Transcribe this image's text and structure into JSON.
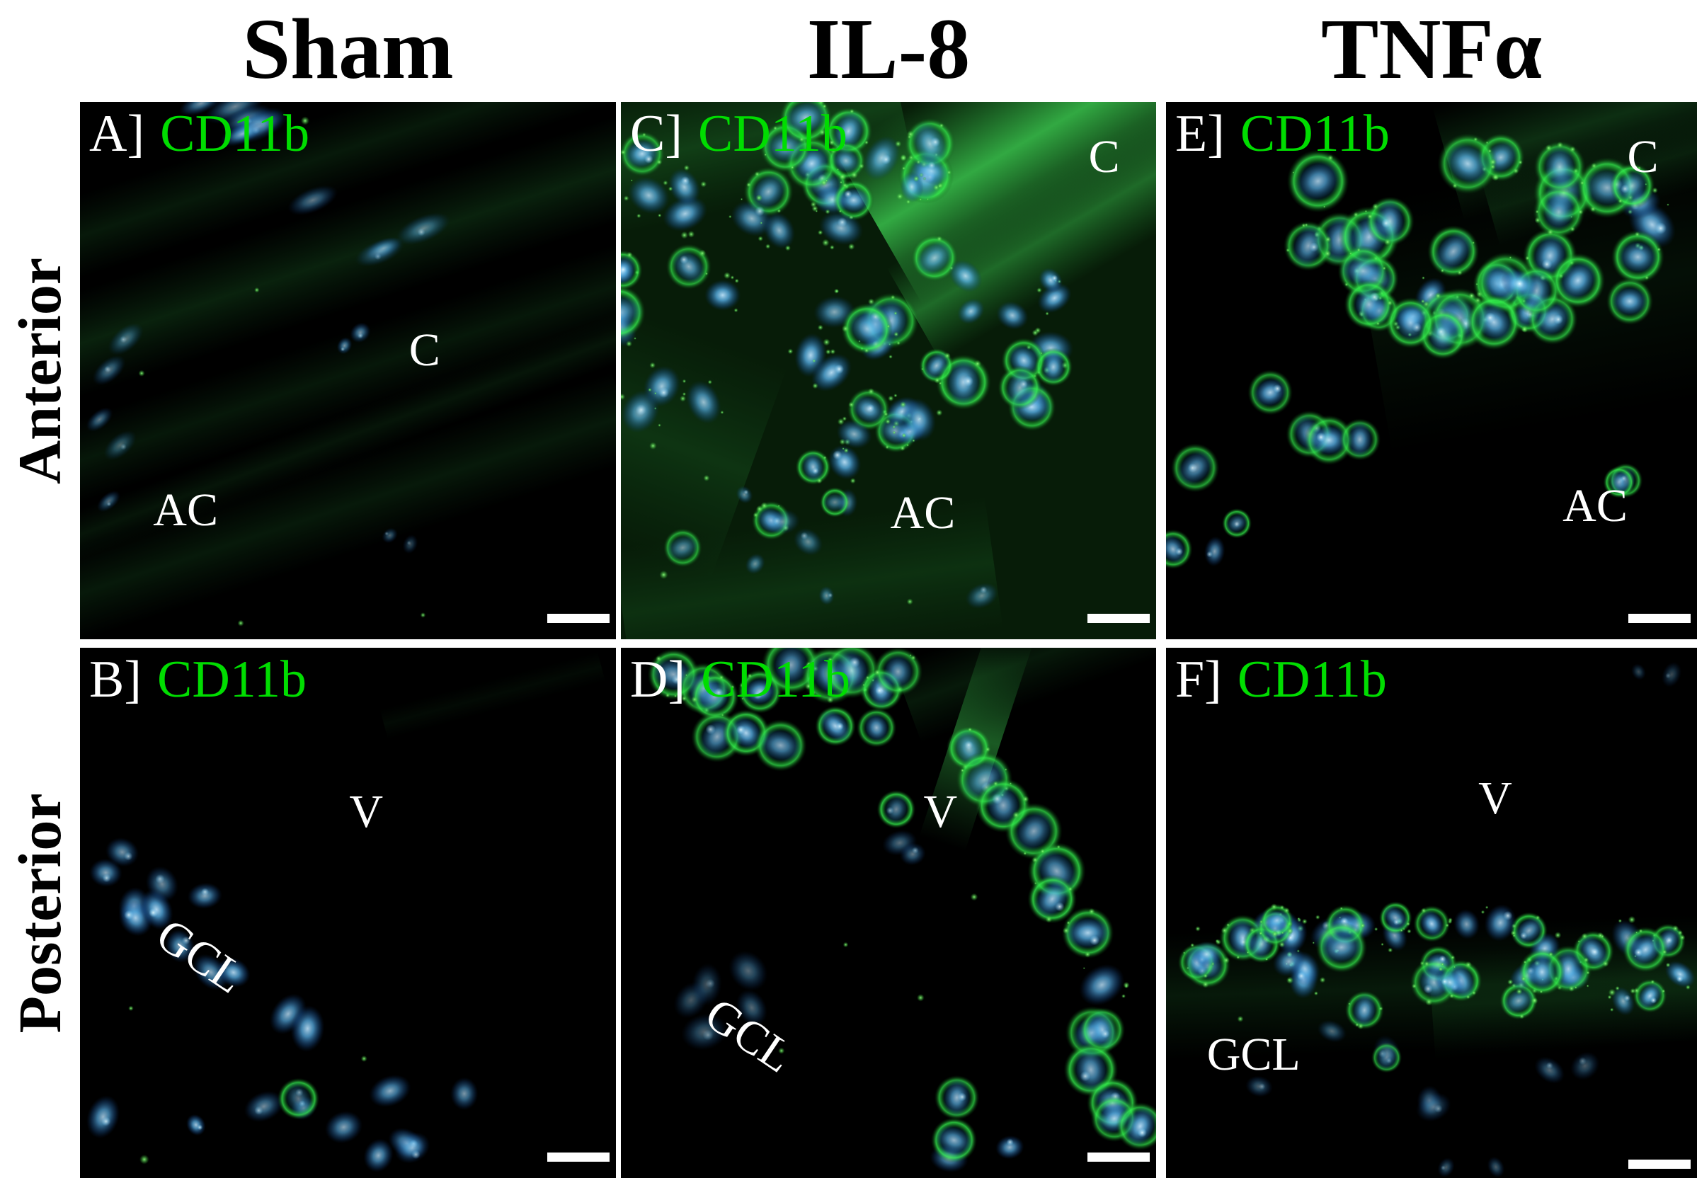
{
  "columns": [
    {
      "id": "sham",
      "label": "Sham"
    },
    {
      "id": "il8",
      "label": "IL-8"
    },
    {
      "id": "tnfa",
      "label": "TNFα"
    }
  ],
  "rows": [
    {
      "id": "anterior",
      "label": "Anterior"
    },
    {
      "id": "posterior",
      "label": "Posterior"
    }
  ],
  "panels": [
    {
      "letter": "A]",
      "marker": "CD11b",
      "column": "Sham",
      "row": "Anterior",
      "annotation_1": "C",
      "annotation_2": "AC",
      "has_scale_bar": true
    },
    {
      "letter": "B]",
      "marker": "CD11b",
      "column": "Sham",
      "row": "Posterior",
      "annotation_1": "V",
      "annotation_2": "GCL",
      "has_scale_bar": true
    },
    {
      "letter": "C]",
      "marker": "CD11b",
      "column": "IL-8",
      "row": "Anterior",
      "annotation_1": "C",
      "annotation_2": "AC",
      "has_scale_bar": true
    },
    {
      "letter": "D]",
      "marker": "CD11b",
      "column": "IL-8",
      "row": "Posterior",
      "annotation_1": "V",
      "annotation_2": "GCL",
      "has_scale_bar": true
    },
    {
      "letter": "E]",
      "marker": "CD11b",
      "column": "TNFα",
      "row": "Anterior",
      "annotation_1": "C",
      "annotation_2": "AC",
      "has_scale_bar": true
    },
    {
      "letter": "F]",
      "marker": "CD11b",
      "column": "TNFα",
      "row": "Posterior",
      "annotation_1": "V",
      "annotation_2": "GCL",
      "has_scale_bar": true
    }
  ],
  "colors": {
    "marker_label_green": "#00DD00",
    "cd11b_stain_green": "#2ECC40",
    "nuclei_blue": "#4FA8E0",
    "annotation_text": "#FFFFFF",
    "scale_bar": "#FFFFFF",
    "panel_background": "#000000",
    "page_background": "#FFFFFF",
    "header_text": "#000000"
  }
}
